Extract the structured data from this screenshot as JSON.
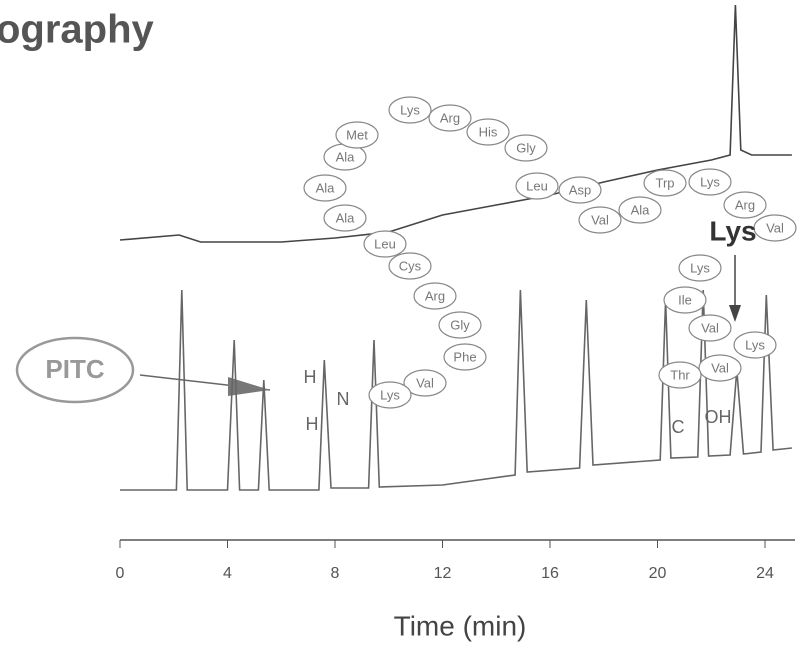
{
  "chart_data": {
    "type": "line",
    "title": "ography",
    "x_label": "Time (min)",
    "xlim": [
      0,
      25
    ],
    "xticks": [
      0,
      4,
      8,
      12,
      16,
      20,
      24
    ],
    "series": [
      {
        "color": "#444444",
        "x": [
          0,
          2.2,
          3,
          6,
          8,
          10,
          12,
          14,
          16,
          18,
          20,
          22,
          22.7,
          22.9,
          23.1,
          23.5,
          25
        ],
        "values": [
          260,
          265,
          258,
          258,
          262,
          268,
          285,
          295,
          305,
          318,
          330,
          340,
          345,
          495,
          350,
          345,
          345
        ]
      },
      {
        "color": "#666666",
        "x": [
          0,
          2.1,
          2.3,
          2.5,
          4.0,
          4.25,
          4.45,
          5.15,
          5.35,
          5.55,
          7.4,
          7.6,
          7.85,
          9.25,
          9.45,
          9.65,
          12,
          14.7,
          14.9,
          15.15,
          17.1,
          17.35,
          17.6,
          20.1,
          20.3,
          20.5,
          21.5,
          21.7,
          21.9,
          22.7,
          22.95,
          23.2,
          23.85,
          24.05,
          24.3,
          25
        ],
        "values": [
          10,
          10,
          210,
          10,
          10,
          160,
          10,
          10,
          120,
          10,
          10,
          140,
          12,
          12,
          160,
          13,
          15,
          25,
          210,
          28,
          32,
          200,
          35,
          40,
          200,
          42,
          43,
          210,
          44,
          45,
          130,
          46,
          48,
          205,
          50,
          52
        ]
      }
    ],
    "annotations": [
      "Ala",
      "Ala",
      "Ala",
      "Met",
      "Lys",
      "Arg",
      "His",
      "Gly",
      "Leu",
      "Asp",
      "Val",
      "Ala",
      "Trp",
      "Lys",
      "Arg",
      "Val",
      "Leu",
      "Cys",
      "Arg",
      "Gly",
      "Phe",
      "Val",
      "Lys",
      "Lys",
      "Ile",
      "Val",
      "Val",
      "Thr",
      "Lys",
      "Lys",
      "PITC",
      "H",
      "N",
      "H",
      "C",
      "OH"
    ]
  }
}
